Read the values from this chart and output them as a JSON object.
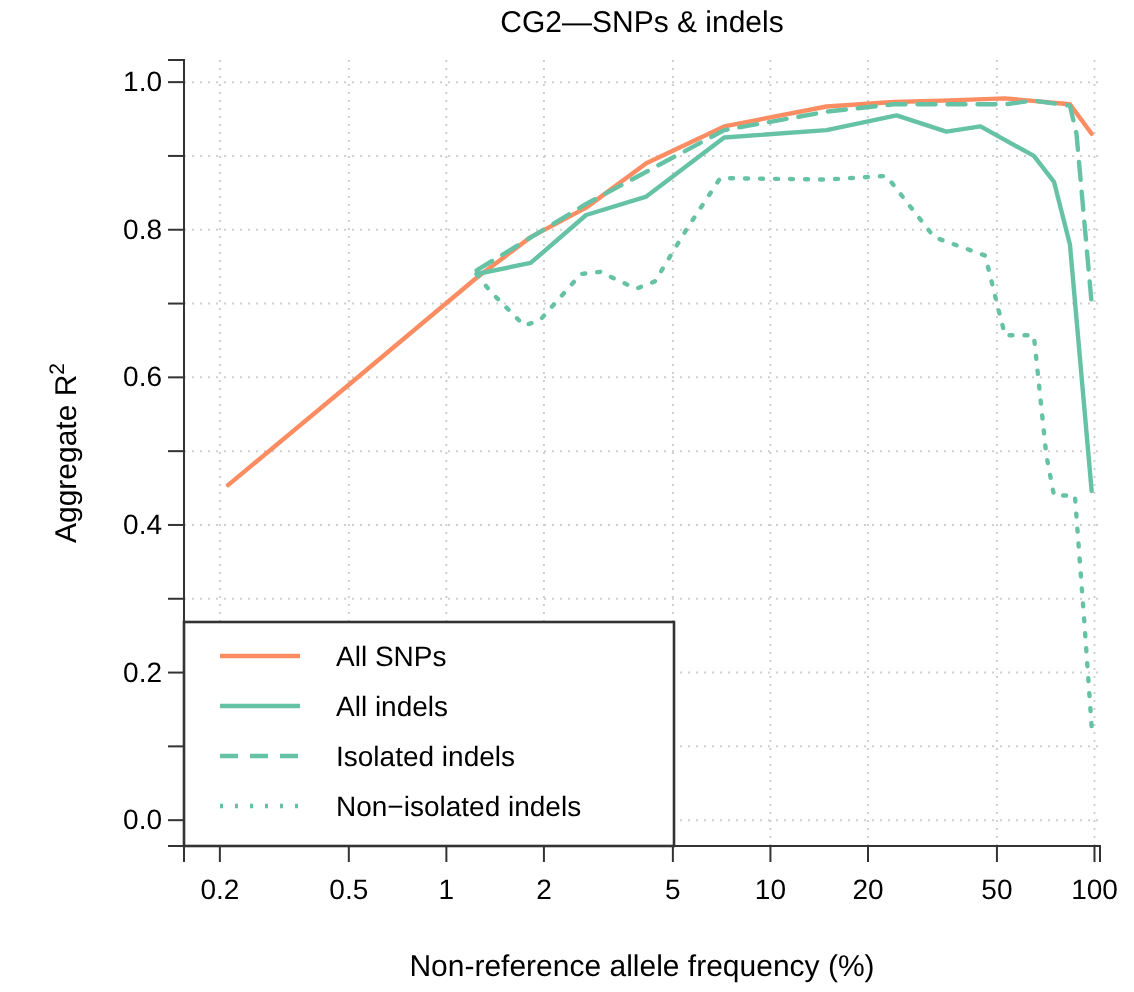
{
  "chart_data": {
    "type": "line",
    "title": "CG2—SNPs & indels",
    "xlabel": "Non-reference allele frequency (%)",
    "ylabel": "Aggregate R$^{2}$",
    "log": "x",
    "grid": true,
    "legend": "bottom left",
    "marker": "none",
    "xlim": [
      0.155,
      104
    ],
    "ylim": [
      -0.035,
      1.03
    ],
    "xticks": [
      0.2,
      0.5,
      1,
      2,
      5,
      10,
      20,
      50,
      100
    ],
    "yticks": [
      {
        "value": 0,
        "label": "0.0"
      },
      {
        "value": 0.1,
        "label": null
      },
      {
        "value": 0.2,
        "label": "0.2"
      },
      {
        "value": 0.3,
        "label": null
      },
      {
        "value": 0.4,
        "label": "0.4"
      },
      {
        "value": 0.5,
        "label": null
      },
      {
        "value": 0.6,
        "label": "0.6"
      },
      {
        "value": 0.7,
        "label": null
      },
      {
        "value": 0.8,
        "label": "0.8"
      },
      {
        "value": 0.9,
        "label": null
      },
      {
        "value": 1,
        "label": "1.0"
      }
    ],
    "series": [
      {
        "name": "All SNPs",
        "color": "#fc8d62",
        "line_style": "solid",
        "x": [
          0.212,
          0.5,
          1.24,
          1.82,
          2.7,
          4.14,
          7.2,
          14.9,
          24,
          34,
          53,
          84,
          98
        ],
        "values": [
          0.454,
          0.59,
          0.735,
          0.79,
          0.83,
          0.89,
          0.94,
          0.967,
          0.973,
          0.975,
          0.978,
          0.97,
          0.93
        ]
      },
      {
        "name": "All indels",
        "color": "#66c2a5",
        "line_style": "solid",
        "x": [
          1.24,
          1.82,
          2.7,
          4.14,
          7.2,
          14.9,
          24.5,
          34.9,
          44.5,
          65,
          75,
          84,
          98
        ],
        "values": [
          0.74,
          0.755,
          0.82,
          0.845,
          0.925,
          0.935,
          0.955,
          0.933,
          0.94,
          0.9,
          0.865,
          0.78,
          0.446
        ]
      },
      {
        "name": "Isolated indels",
        "color": "#66c2a5",
        "line_style": "dashed",
        "x": [
          1.24,
          2.7,
          7.2,
          14.9,
          24,
          53,
          65,
          84,
          88,
          98
        ],
        "values": [
          0.745,
          0.835,
          0.935,
          0.96,
          0.97,
          0.97,
          0.975,
          0.968,
          0.93,
          0.7
        ]
      },
      {
        "name": "Non−isolated indels",
        "color": "#66c2a5",
        "line_style": "dotted",
        "x": [
          1.24,
          1.37,
          1.74,
          1.95,
          2.6,
          2.98,
          3.85,
          4.4,
          5.5,
          7,
          14.9,
          22.8,
          32,
          46,
          51,
          53,
          65,
          71,
          75,
          87,
          93,
          98
        ],
        "values": [
          0.74,
          0.716,
          0.67,
          0.678,
          0.74,
          0.743,
          0.72,
          0.73,
          0.8,
          0.87,
          0.868,
          0.873,
          0.79,
          0.765,
          0.685,
          0.657,
          0.657,
          0.495,
          0.44,
          0.44,
          0.27,
          0.127
        ]
      }
    ]
  }
}
